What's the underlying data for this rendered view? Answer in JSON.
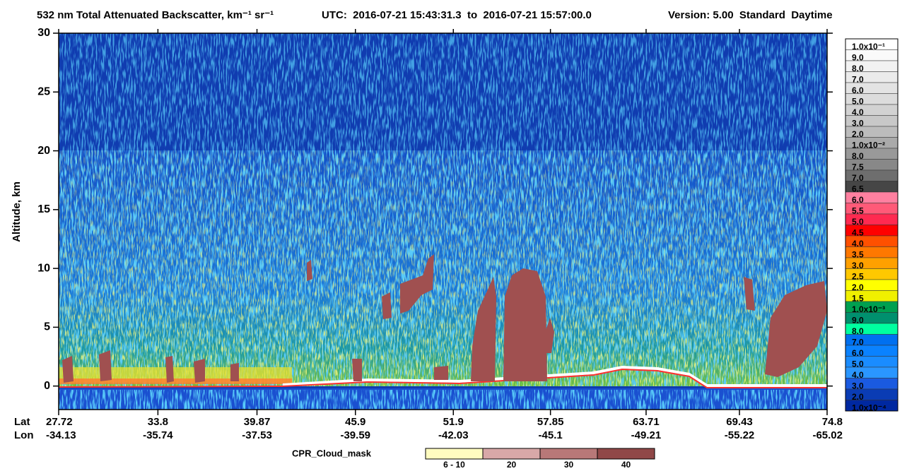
{
  "chart_data": {
    "type": "heatmap",
    "title": "532 nm Total Attenuated Backscatter, km⁻¹ sr⁻¹",
    "subtitle": "UTC:  2016-07-21 15:43:31.3  to  2016-07-21 15:57:00.0",
    "version": "Version: 5.00  Standard  Daytime",
    "y_label": "Altitude, km",
    "ylim": [
      -2,
      30
    ],
    "yticks": [
      0,
      5,
      10,
      15,
      20,
      25,
      30
    ],
    "xlim": [
      27.72,
      74.8
    ],
    "x_row_labels": [
      "Lat",
      "Lon"
    ],
    "lat": [
      27.72,
      33.8,
      39.87,
      45.9,
      51.9,
      57.85,
      63.71,
      69.43,
      74.8
    ],
    "lon": [
      -34.13,
      -35.74,
      -37.53,
      -39.59,
      -42.03,
      -45.1,
      -49.21,
      -55.22,
      -65.02
    ],
    "colorbar": {
      "labels": [
        "1.0x10⁻¹",
        "9.0",
        "8.0",
        "7.0",
        "6.0",
        "5.0",
        "4.0",
        "3.0",
        "2.0",
        "1.0x10⁻²",
        "8.0",
        "7.5",
        "7.0",
        "6.5",
        "6.0",
        "5.5",
        "5.0",
        "4.5",
        "4.0",
        "3.5",
        "3.0",
        "2.5",
        "2.0",
        "1.5",
        "1.0x10⁻³",
        "9.0",
        "8.0",
        "7.0",
        "6.0",
        "5.0",
        "4.0",
        "3.0",
        "2.0",
        "1.0x10⁻⁴"
      ],
      "colors": [
        "#ffffff",
        "#fafafa",
        "#f2f2f2",
        "#ebebeb",
        "#e3e3e3",
        "#dcdcdc",
        "#d2d2d2",
        "#c8c8c8",
        "#bcbcbc",
        "#aaaaaa",
        "#999999",
        "#888888",
        "#6e6e6e",
        "#464646",
        "#ff80a0",
        "#ff5a78",
        "#ff2a50",
        "#ff0000",
        "#ff5000",
        "#ff7800",
        "#ffa000",
        "#ffc800",
        "#ffff00",
        "#f0f000",
        "#00a050",
        "#00906e",
        "#00ffa0",
        "#0070f0",
        "#0a82ff",
        "#1a8cff",
        "#2a96ff",
        "#1a5ae0",
        "#0a3cb4",
        "#0028a0"
      ]
    },
    "cloud_mask": {
      "title": "CPR_Cloud_mask",
      "labels": [
        "6 - 10",
        "20",
        "30",
        "40"
      ],
      "colors": [
        "#fffcc0",
        "#d8a8a8",
        "#b87878",
        "#904848"
      ]
    }
  }
}
